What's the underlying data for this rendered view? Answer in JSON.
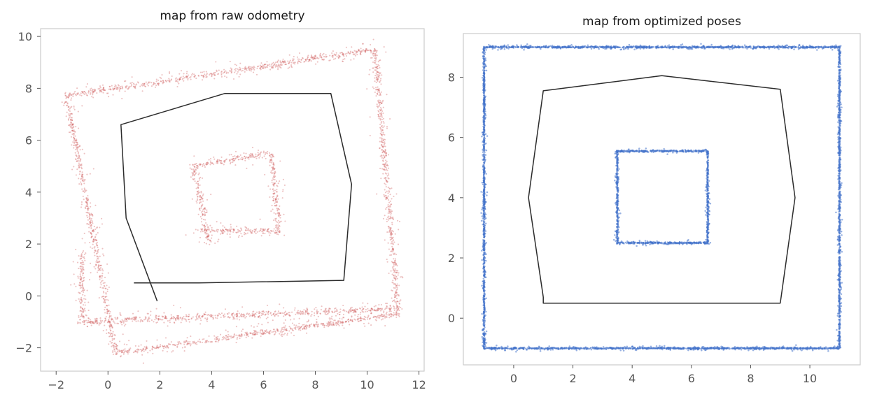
{
  "chart_data": [
    {
      "type": "scatter",
      "title": "map from raw odometry",
      "xlabel": "",
      "ylabel": "",
      "xlim": [
        -2.6,
        12.2
      ],
      "ylim": [
        -2.9,
        10.3
      ],
      "xticks": [
        -2,
        0,
        2,
        4,
        6,
        8,
        10,
        12
      ],
      "yticks": [
        -2,
        0,
        2,
        4,
        6,
        8,
        10
      ],
      "xtick_labels": [
        "−2",
        "0",
        "2",
        "4",
        "6",
        "8",
        "10",
        "12"
      ],
      "ytick_labels": [
        "−2",
        "0",
        "2",
        "4",
        "6",
        "8",
        "10"
      ],
      "grid": false,
      "series": [
        {
          "kind": "scan-points",
          "color": "#d05f5f",
          "outlines": [
            [
              [
                -1.6,
                7.7
              ],
              [
                10.3,
                9.5
              ],
              [
                11.2,
                -0.7
              ],
              [
                0.3,
                -2.2
              ],
              [
                -1.6,
                7.7
              ]
            ],
            [
              [
                -1.0,
                1.7
              ],
              [
                -1.0,
                -1.0
              ],
              [
                11.0,
                -0.5
              ]
            ],
            [
              [
                3.3,
                5.0
              ],
              [
                6.3,
                5.5
              ],
              [
                6.6,
                2.5
              ],
              [
                3.4,
                2.5
              ]
            ],
            [
              [
                3.3,
                5.0
              ],
              [
                3.9,
                2.1
              ]
            ]
          ]
        },
        {
          "kind": "trajectory",
          "color": "#2b2b2b",
          "points": [
            [
              1.0,
              0.5
            ],
            [
              3.5,
              0.5
            ],
            [
              9.1,
              0.6
            ],
            [
              9.4,
              4.3
            ],
            [
              8.6,
              7.8
            ],
            [
              4.5,
              7.8
            ],
            [
              0.5,
              6.6
            ],
            [
              0.7,
              3.0
            ],
            [
              1.9,
              -0.2
            ]
          ]
        }
      ]
    },
    {
      "type": "scatter",
      "title": "map from optimized poses",
      "xlabel": "",
      "ylabel": "",
      "xlim": [
        -1.7,
        11.7
      ],
      "ylim": [
        -1.55,
        9.45
      ],
      "xticks": [
        0,
        2,
        4,
        6,
        8,
        10
      ],
      "yticks": [
        0,
        2,
        4,
        6,
        8
      ],
      "xtick_labels": [
        "0",
        "2",
        "4",
        "6",
        "8",
        "10"
      ],
      "ytick_labels": [
        "0",
        "2",
        "4",
        "6",
        "8"
      ],
      "grid": false,
      "series": [
        {
          "kind": "scan-points",
          "color": "#4472ca",
          "outlines": [
            [
              [
                -1.0,
                9.0
              ],
              [
                11.0,
                9.0
              ],
              [
                11.0,
                -1.0
              ],
              [
                -1.0,
                -1.0
              ],
              [
                -1.0,
                9.0
              ]
            ],
            [
              [
                3.5,
                5.55
              ],
              [
                6.55,
                5.55
              ],
              [
                6.55,
                2.5
              ],
              [
                3.5,
                2.5
              ],
              [
                3.5,
                5.55
              ]
            ]
          ]
        },
        {
          "kind": "trajectory",
          "color": "#2b2b2b",
          "points": [
            [
              1.0,
              0.7
            ],
            [
              1.0,
              0.5
            ],
            [
              9.0,
              0.5
            ],
            [
              9.5,
              4.0
            ],
            [
              9.0,
              7.6
            ],
            [
              5.0,
              8.05
            ],
            [
              1.0,
              7.55
            ],
            [
              0.5,
              4.0
            ],
            [
              1.0,
              0.7
            ]
          ]
        }
      ]
    }
  ]
}
